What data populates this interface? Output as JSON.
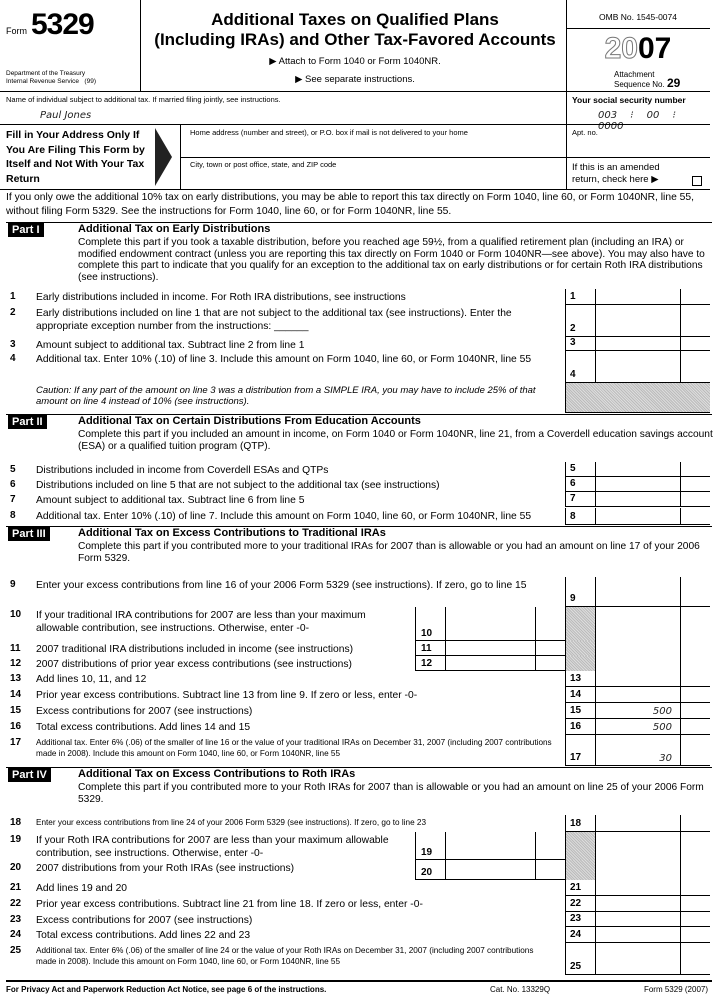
{
  "header": {
    "form_label": "Form",
    "form_number": "5329",
    "dept1": "Department of the Treasury",
    "dept2": "Internal Revenue Service",
    "dept_code": "(99)",
    "title1": "Additional Taxes on Qualified Plans",
    "title2": "(Including IRAs) and Other Tax-Favored Accounts",
    "attach": "▶ Attach to Form 1040 or Form 1040NR.",
    "see": "▶ See separate instructions.",
    "omb": "OMB No. 1545-0074",
    "year_outline": "20",
    "year_bold": "07",
    "attachment": "Attachment",
    "sequence": "Sequence No.",
    "sequence_no": "29"
  },
  "taxpayer": {
    "name_label": "Name of individual subject to additional tax. If married filing jointly, see instructions.",
    "name": "Paul Jones",
    "ssn_label": "Your social security number",
    "ssn": [
      "003",
      "00",
      "0000"
    ],
    "fill_in": "Fill in Your Address Only If You Are Filing This Form by Itself and Not With Your Tax Return",
    "home_label": "Home address (number and street), or P.O. box if mail is not delivered to your home",
    "apt_label": "Apt. no.",
    "city_label": "City, town or post office, state, and ZIP code",
    "amended_label": "If this is an amended return, check here ▶",
    "amended_checked": false
  },
  "intro": "If you only owe the additional 10% tax on early distributions, you may be able to report this tax directly on Form 1040, line 60, or Form 1040NR, line 55, without filing Form 5329. See the instructions for Form 1040, line 60, or for Form 1040NR, line 55.",
  "parts": [
    {
      "tag": "Part I",
      "title": "Additional Tax on Early Distributions",
      "desc": "Complete this part if you took a taxable distribution, before you reached age 59½, from a qualified retirement plan (including an IRA) or modified endowment contract (unless you are reporting this tax directly on Form 1040 or Form 1040NR—see above). You may also have to complete this part to indicate that you qualify for an exception to the additional tax on early distributions or for certain Roth IRA distributions (see instructions)."
    },
    {
      "tag": "Part II",
      "title": "Additional Tax on Certain Distributions From Education Accounts",
      "desc": "Complete this part if you included an amount in income, on Form 1040 or Form 1040NR, line 21, from a Coverdell education savings account (ESA) or a qualified tuition program (QTP)."
    },
    {
      "tag": "Part III",
      "title": "Additional Tax on Excess Contributions to Traditional IRAs",
      "desc": "Complete this part if you contributed more to your traditional IRAs for 2007 than is allowable or you had an amount on line 17 of your 2006 Form 5329."
    },
    {
      "tag": "Part IV",
      "title": "Additional Tax on Excess Contributions to Roth IRAs",
      "desc": "Complete this part if you contributed more to your Roth IRAs for 2007 than is allowable or you had an amount on line 25 of your 2006 Form 5329."
    }
  ],
  "caution": "Caution: If any part of the amount on line 3 was a distribution from a SIMPLE IRA, you may have to include 25% of that amount on line 4 instead of 10% (see instructions).",
  "lines": [
    {
      "n": "1",
      "text": "Early distributions included in income. For Roth IRA distributions, see instructions",
      "amount": ""
    },
    {
      "n": "2",
      "text": "Early distributions included on line 1 that are not subject to the additional tax (see instructions). Enter the appropriate exception number from the instructions: ______",
      "amount": ""
    },
    {
      "n": "3",
      "text": "Amount subject to additional tax. Subtract line 2 from line 1",
      "amount": ""
    },
    {
      "n": "4",
      "text": "Additional tax. Enter 10% (.10) of line 3. Include this amount on Form 1040, line 60, or Form 1040NR, line 55",
      "amount": ""
    },
    {
      "n": "5",
      "text": "Distributions included in income from Coverdell ESAs and QTPs",
      "amount": ""
    },
    {
      "n": "6",
      "text": "Distributions included on line 5 that are not subject to the additional tax (see instructions)",
      "amount": ""
    },
    {
      "n": "7",
      "text": "Amount subject to additional tax. Subtract line 6 from line 5",
      "amount": ""
    },
    {
      "n": "8",
      "text": "Additional tax. Enter 10% (.10) of line 7. Include this amount on Form 1040, line 60, or Form 1040NR, line 55",
      "amount": ""
    },
    {
      "n": "9",
      "text": "Enter your excess contributions from line 16 of your 2006 Form 5329 (see instructions). If zero, go to line 15",
      "amount": ""
    },
    {
      "n": "10",
      "text": "If your traditional IRA contributions for 2007 are less than your maximum allowable contribution, see instructions. Otherwise, enter -0-",
      "amount": ""
    },
    {
      "n": "11",
      "text": "2007 traditional IRA distributions included in income (see instructions)",
      "amount": ""
    },
    {
      "n": "12",
      "text": "2007 distributions of prior year excess contributions (see instructions)",
      "amount": ""
    },
    {
      "n": "13",
      "text": "Add lines 10, 11, and 12",
      "amount": ""
    },
    {
      "n": "14",
      "text": "Prior year excess contributions. Subtract line 13 from line 9. If zero or less, enter -0-",
      "amount": ""
    },
    {
      "n": "15",
      "text": "Excess contributions for 2007 (see instructions)",
      "amount": "500"
    },
    {
      "n": "16",
      "text": "Total excess contributions. Add lines 14 and 15",
      "amount": "500"
    },
    {
      "n": "17",
      "text": "Additional tax. Enter 6% (.06) of the smaller of line 16 or the value of your traditional IRAs on December 31, 2007 (including 2007 contributions made in 2008). Include this amount on Form 1040, line 60, or Form 1040NR, line 55",
      "amount": "30"
    },
    {
      "n": "18",
      "text": "Enter your excess contributions from line 24 of your 2006 Form 5329 (see instructions). If zero, go to line 23",
      "amount": ""
    },
    {
      "n": "19",
      "text": "If your Roth IRA contributions for 2007 are less than your maximum allowable contribution, see instructions. Otherwise, enter -0-",
      "amount": ""
    },
    {
      "n": "20",
      "text": "2007 distributions from your Roth IRAs (see instructions)",
      "amount": ""
    },
    {
      "n": "21",
      "text": "Add lines 19 and 20",
      "amount": ""
    },
    {
      "n": "22",
      "text": "Prior year excess contributions. Subtract line 21 from line 18. If zero or less, enter -0-",
      "amount": ""
    },
    {
      "n": "23",
      "text": "Excess contributions for 2007 (see instructions)",
      "amount": ""
    },
    {
      "n": "24",
      "text": "Total excess contributions. Add lines 22 and 23",
      "amount": ""
    },
    {
      "n": "25",
      "text": "Additional tax. Enter 6% (.06) of the smaller of line 24 or the value of your Roth IRAs on December 31, 2007 (including 2007 contributions made in 2008). Include this amount on Form 1040, line 60, or Form 1040NR, line 55",
      "amount": ""
    }
  ],
  "footer": {
    "privacy": "For Privacy Act and Paperwork Reduction Act Notice, see page 6 of the instructions.",
    "cat": "Cat. No. 13329Q",
    "form": "Form 5329 (2007)"
  }
}
